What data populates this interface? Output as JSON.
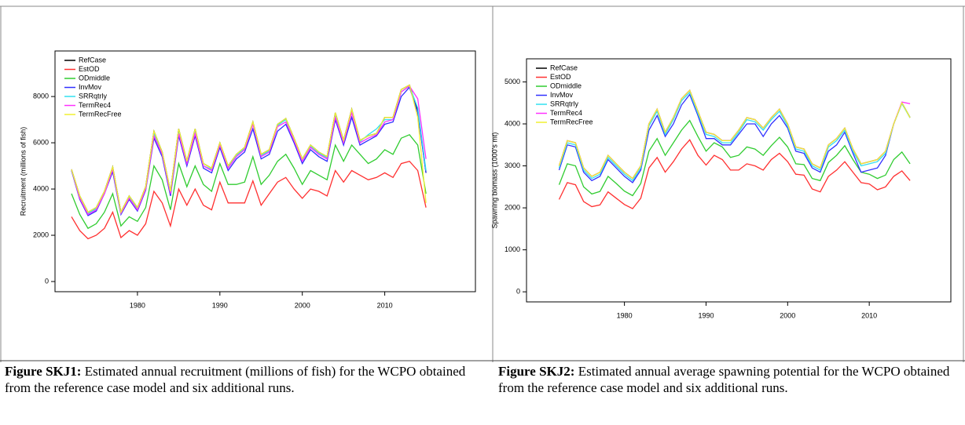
{
  "chart_data": [
    {
      "type": "line",
      "ylabel": "Recruitment (millions of fish)",
      "legend": "upper left",
      "x": [
        1972,
        1973,
        1974,
        1975,
        1976,
        1977,
        1978,
        1979,
        1980,
        1981,
        1982,
        1983,
        1984,
        1985,
        1986,
        1987,
        1988,
        1989,
        1990,
        1991,
        1992,
        1993,
        1994,
        1995,
        1996,
        1997,
        1998,
        1999,
        2000,
        2001,
        2002,
        2003,
        2004,
        2005,
        2006,
        2007,
        2008,
        2009,
        2010,
        2011,
        2012,
        2013,
        2014,
        2015
      ],
      "xlim": [
        1970,
        2021
      ],
      "xticks": [
        1980,
        1990,
        2000,
        2010
      ],
      "ylim": [
        -440,
        9970
      ],
      "yticks": [
        0,
        2000,
        4000,
        6000,
        8000
      ],
      "series": [
        {
          "name": "RefCase",
          "color": "#000000",
          "values": [
            4850,
            3700,
            3000,
            3200,
            3900,
            4950,
            3000,
            3700,
            3200,
            4100,
            6500,
            5600,
            3900,
            6600,
            5200,
            6600,
            5100,
            4900,
            6000,
            5000,
            5500,
            5800,
            6900,
            5500,
            5700,
            6800,
            7050,
            6200,
            5300,
            5900,
            5600,
            5400,
            7300,
            6100,
            7450,
            6100,
            6300,
            6400,
            7100,
            7100,
            8300,
            8500,
            7400,
            4700
          ]
        },
        {
          "name": "EstOD",
          "color": "#ff3030",
          "values": [
            2800,
            2200,
            1850,
            2000,
            2300,
            3000,
            1900,
            2200,
            2000,
            2500,
            3900,
            3400,
            2400,
            4000,
            3300,
            4000,
            3300,
            3100,
            4300,
            3400,
            3400,
            3400,
            4350,
            3300,
            3800,
            4300,
            4500,
            4000,
            3600,
            4000,
            3900,
            3700,
            4800,
            4300,
            4800,
            4600,
            4400,
            4500,
            4700,
            4500,
            5100,
            5200,
            4800,
            3200
          ]
        },
        {
          "name": "ODmiddle",
          "color": "#30cc30",
          "values": [
            3800,
            2900,
            2300,
            2500,
            3000,
            3800,
            2400,
            2800,
            2600,
            3200,
            5000,
            4400,
            3100,
            5100,
            4100,
            5000,
            4200,
            3900,
            5100,
            4200,
            4200,
            4300,
            5400,
            4200,
            4600,
            5200,
            5500,
            4900,
            4200,
            4800,
            4600,
            4400,
            5900,
            5200,
            5900,
            5500,
            5100,
            5300,
            5700,
            5500,
            6200,
            6350,
            5900,
            3800
          ]
        },
        {
          "name": "InvMov",
          "color": "#3030ff",
          "values": [
            4800,
            3550,
            2850,
            3050,
            3800,
            4750,
            2900,
            3550,
            3050,
            3950,
            6200,
            5400,
            3700,
            6300,
            5000,
            6300,
            4900,
            4700,
            5800,
            4800,
            5300,
            5600,
            6600,
            5300,
            5500,
            6500,
            6800,
            6000,
            5100,
            5700,
            5400,
            5200,
            7000,
            5900,
            7100,
            5900,
            6100,
            6300,
            6800,
            6900,
            8000,
            8400,
            7300,
            4700
          ]
        },
        {
          "name": "SRRqtrly",
          "color": "#30e0f0",
          "values": [
            4850,
            3650,
            2950,
            3150,
            3850,
            4900,
            2950,
            3650,
            3150,
            4050,
            6400,
            5500,
            3850,
            6500,
            5100,
            6500,
            5000,
            4850,
            5900,
            4950,
            5450,
            5750,
            6850,
            5450,
            5650,
            6750,
            7000,
            6150,
            5250,
            5850,
            5550,
            5350,
            7200,
            6050,
            7350,
            6050,
            6350,
            6600,
            7000,
            7000,
            8200,
            8450,
            7500,
            4800
          ]
        },
        {
          "name": "TermRec4",
          "color": "#ff30ff",
          "values": [
            4850,
            3600,
            2900,
            3100,
            3800,
            4850,
            2950,
            3600,
            3100,
            4000,
            6300,
            5500,
            3800,
            6400,
            5100,
            6400,
            5000,
            4800,
            5900,
            4900,
            5400,
            5700,
            6800,
            5400,
            5600,
            6700,
            6900,
            6100,
            5200,
            5800,
            5500,
            5300,
            7100,
            6000,
            7300,
            6000,
            6200,
            6350,
            6900,
            7000,
            8200,
            8450,
            7900,
            5300
          ]
        },
        {
          "name": "TermRecFree",
          "color": "#f0f030",
          "values": [
            4850,
            3700,
            3000,
            3200,
            3900,
            4950,
            3000,
            3700,
            3200,
            4100,
            6500,
            5600,
            3900,
            6600,
            5200,
            6600,
            5100,
            4900,
            6000,
            5000,
            5500,
            5800,
            6900,
            5500,
            5700,
            6800,
            7050,
            6200,
            5300,
            5900,
            5600,
            5400,
            7300,
            6100,
            7450,
            6100,
            6300,
            6400,
            7100,
            7100,
            8300,
            8500,
            7100,
            3400
          ]
        }
      ]
    },
    {
      "type": "line",
      "ylabel": "Spawning biomass (1000's mt)",
      "legend": "upper left",
      "x": [
        1972,
        1973,
        1974,
        1975,
        1976,
        1977,
        1978,
        1979,
        1980,
        1981,
        1982,
        1983,
        1984,
        1985,
        1986,
        1987,
        1988,
        1989,
        1990,
        1991,
        1992,
        1993,
        1994,
        1995,
        1996,
        1997,
        1998,
        1999,
        2000,
        2001,
        2002,
        2003,
        2004,
        2005,
        2006,
        2007,
        2008,
        2009,
        2010,
        2011,
        2012,
        2013,
        2014,
        2015
      ],
      "xlim": [
        1968,
        2020
      ],
      "xticks": [
        1980,
        1990,
        2000,
        2010
      ],
      "ylim": [
        -240,
        5550
      ],
      "yticks": [
        0,
        1000,
        2000,
        3000,
        4000,
        5000
      ],
      "series": [
        {
          "name": "RefCase",
          "color": "#000000",
          "values": [
            3000,
            3600,
            3550,
            2950,
            2750,
            2850,
            3250,
            3050,
            2850,
            2700,
            3000,
            4000,
            4350,
            3800,
            4150,
            4600,
            4800,
            4300,
            3800,
            3750,
            3600,
            3600,
            3850,
            4150,
            4100,
            3900,
            4150,
            4350,
            4000,
            3450,
            3400,
            3050,
            2950,
            3500,
            3650,
            3900,
            3400,
            3050,
            3100,
            3150,
            3350,
            4000,
            4500,
            4150
          ]
        },
        {
          "name": "EstOD",
          "color": "#ff3030",
          "values": [
            2200,
            2600,
            2550,
            2150,
            2030,
            2070,
            2380,
            2230,
            2080,
            1980,
            2230,
            2950,
            3200,
            2850,
            3100,
            3400,
            3620,
            3250,
            3020,
            3250,
            3150,
            2900,
            2900,
            3050,
            3000,
            2900,
            3150,
            3300,
            3100,
            2800,
            2780,
            2450,
            2380,
            2750,
            2900,
            3100,
            2850,
            2600,
            2570,
            2430,
            2500,
            2750,
            2880,
            2650
          ]
        },
        {
          "name": "ODmiddle",
          "color": "#30cc30",
          "values": [
            2550,
            3050,
            3000,
            2500,
            2330,
            2390,
            2750,
            2580,
            2400,
            2290,
            2580,
            3350,
            3650,
            3250,
            3550,
            3850,
            4080,
            3700,
            3350,
            3550,
            3450,
            3200,
            3250,
            3450,
            3400,
            3250,
            3480,
            3680,
            3450,
            3050,
            3030,
            2700,
            2650,
            3080,
            3250,
            3480,
            3150,
            2850,
            2800,
            2700,
            2780,
            3150,
            3330,
            3050
          ]
        },
        {
          "name": "InvMov",
          "color": "#3030ff",
          "values": [
            2900,
            3500,
            3450,
            2850,
            2650,
            2750,
            3150,
            2950,
            2750,
            2600,
            2900,
            3850,
            4200,
            3700,
            4000,
            4450,
            4700,
            4200,
            3650,
            3650,
            3500,
            3500,
            3750,
            4000,
            4000,
            3700,
            4000,
            4200,
            3900,
            3350,
            3300,
            2950,
            2850,
            3350,
            3500,
            3800,
            3300,
            2850,
            2900,
            2950,
            3250,
            4000,
            4500,
            4150
          ]
        },
        {
          "name": "SRRqtrly",
          "color": "#30e0f0",
          "values": [
            2950,
            3550,
            3500,
            2900,
            2700,
            2800,
            3200,
            3000,
            2800,
            2650,
            2950,
            3950,
            4300,
            3750,
            4100,
            4550,
            4750,
            4250,
            3750,
            3700,
            3550,
            3550,
            3800,
            4100,
            4050,
            3850,
            4100,
            4300,
            3950,
            3400,
            3350,
            3000,
            2900,
            3450,
            3600,
            3850,
            3350,
            3000,
            3050,
            3100,
            3300,
            4000,
            4480,
            4150
          ]
        },
        {
          "name": "TermRec4",
          "color": "#ff30ff",
          "values": [
            3000,
            3600,
            3550,
            2950,
            2750,
            2850,
            3250,
            3050,
            2850,
            2700,
            3000,
            4000,
            4350,
            3800,
            4150,
            4600,
            4800,
            4300,
            3800,
            3750,
            3600,
            3600,
            3850,
            4150,
            4100,
            3900,
            4150,
            4350,
            4000,
            3450,
            3400,
            3050,
            2950,
            3500,
            3650,
            3900,
            3400,
            3050,
            3100,
            3150,
            3350,
            4000,
            4520,
            4480
          ]
        },
        {
          "name": "TermRecFree",
          "color": "#f0f030",
          "values": [
            3000,
            3600,
            3550,
            2950,
            2750,
            2850,
            3250,
            3050,
            2850,
            2700,
            3000,
            4000,
            4350,
            3800,
            4150,
            4600,
            4800,
            4300,
            3800,
            3750,
            3600,
            3600,
            3850,
            4150,
            4100,
            3900,
            4150,
            4350,
            4000,
            3450,
            3400,
            3050,
            2950,
            3500,
            3650,
            3900,
            3400,
            3050,
            3100,
            3150,
            3350,
            4000,
            4500,
            4150
          ]
        }
      ]
    }
  ],
  "captions": [
    {
      "label": "Figure SKJ1:",
      "text": "Estimated annual recruitment (millions of fish) for the WCPO obtained from the reference case model and six additional runs."
    },
    {
      "label": "Figure SKJ2:",
      "text": "Estimated annual average spawning potential for the WCPO obtained from the reference case model and six additional runs."
    }
  ]
}
